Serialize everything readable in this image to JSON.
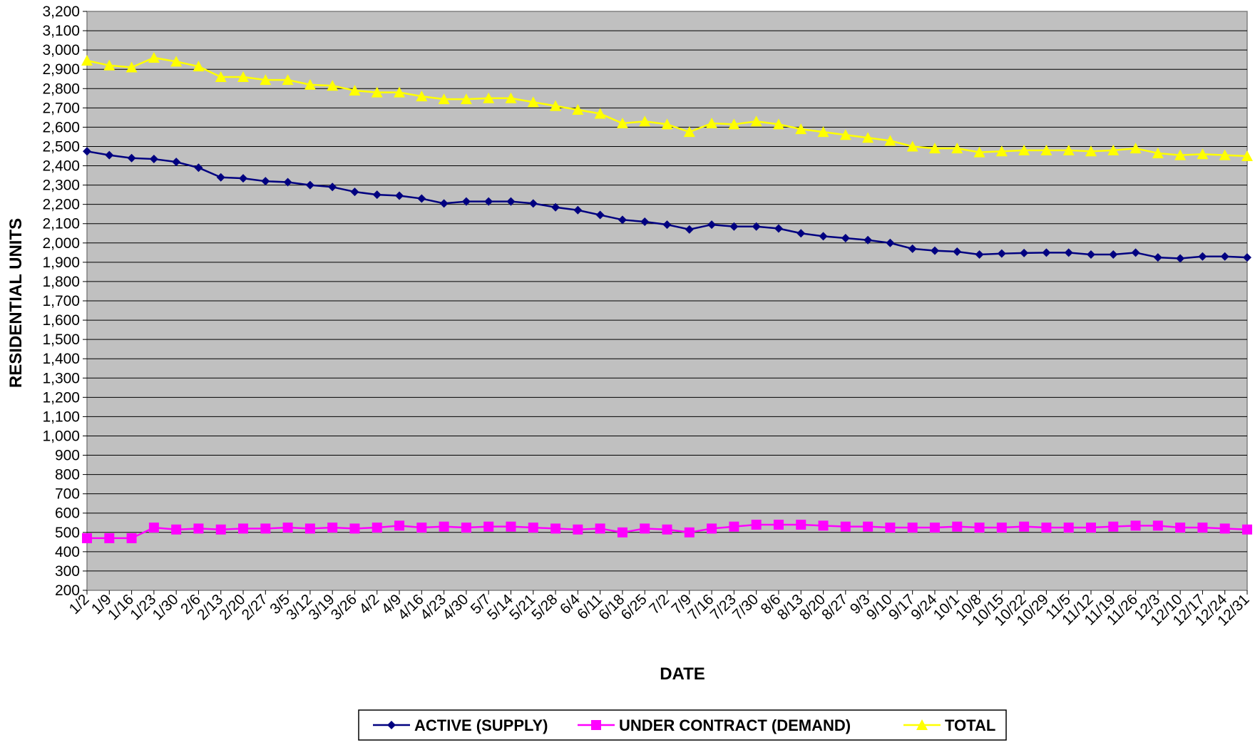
{
  "chart_data": {
    "type": "line",
    "title": "",
    "xlabel": "DATE",
    "ylabel": "RESIDENTIAL UNITS",
    "ylim": [
      200,
      3200
    ],
    "ytick_step": 100,
    "grid": true,
    "legend_position": "bottom",
    "plot_background": "#c0c0c0",
    "categories": [
      "1/2",
      "1/9",
      "1/16",
      "1/23",
      "1/30",
      "2/6",
      "2/13",
      "2/20",
      "2/27",
      "3/5",
      "3/12",
      "3/19",
      "3/26",
      "4/2",
      "4/9",
      "4/16",
      "4/23",
      "4/30",
      "5/7",
      "5/14",
      "5/21",
      "5/28",
      "6/4",
      "6/11",
      "6/18",
      "6/25",
      "7/2",
      "7/9",
      "7/16",
      "7/23",
      "7/30",
      "8/6",
      "8/13",
      "8/20",
      "8/27",
      "9/3",
      "9/10",
      "9/17",
      "9/24",
      "10/1",
      "10/8",
      "10/15",
      "10/22",
      "10/29",
      "11/5",
      "11/12",
      "11/19",
      "11/26",
      "12/3",
      "12/10",
      "12/17",
      "12/24",
      "12/31"
    ],
    "series": [
      {
        "name": "ACTIVE (SUPPLY)",
        "color": "#000080",
        "marker": "diamond",
        "values": [
          2475,
          2455,
          2440,
          2435,
          2420,
          2390,
          2340,
          2335,
          2320,
          2315,
          2300,
          2290,
          2265,
          2250,
          2245,
          2230,
          2205,
          2215,
          2215,
          2215,
          2205,
          2185,
          2170,
          2145,
          2120,
          2110,
          2095,
          2070,
          2095,
          2085,
          2085,
          2075,
          2050,
          2035,
          2025,
          2015,
          2000,
          1970,
          1960,
          1955,
          1940,
          1945,
          1948,
          1950,
          1950,
          1940,
          1940,
          1950,
          1925,
          1920,
          1930,
          1930,
          1925
        ]
      },
      {
        "name": "UNDER CONTRACT (DEMAND)",
        "color": "#ff00ff",
        "marker": "square",
        "values": [
          470,
          470,
          470,
          525,
          515,
          520,
          515,
          520,
          520,
          525,
          520,
          525,
          520,
          525,
          535,
          525,
          530,
          525,
          530,
          530,
          525,
          520,
          515,
          520,
          500,
          520,
          515,
          500,
          520,
          530,
          540,
          540,
          540,
          535,
          530,
          530,
          525,
          525,
          525,
          530,
          525,
          525,
          530,
          525,
          525,
          525,
          530,
          535,
          535,
          525,
          525,
          520,
          515
        ]
      },
      {
        "name": "TOTAL",
        "color": "#ffff00",
        "marker": "triangle",
        "values": [
          2945,
          2920,
          2910,
          2960,
          2940,
          2915,
          2860,
          2860,
          2845,
          2845,
          2820,
          2815,
          2790,
          2780,
          2780,
          2760,
          2745,
          2745,
          2750,
          2750,
          2730,
          2710,
          2690,
          2670,
          2620,
          2630,
          2615,
          2575,
          2620,
          2615,
          2630,
          2615,
          2590,
          2575,
          2560,
          2545,
          2530,
          2500,
          2490,
          2490,
          2470,
          2475,
          2480,
          2480,
          2480,
          2475,
          2480,
          2490,
          2465,
          2455,
          2460,
          2455,
          2450
        ]
      }
    ]
  }
}
